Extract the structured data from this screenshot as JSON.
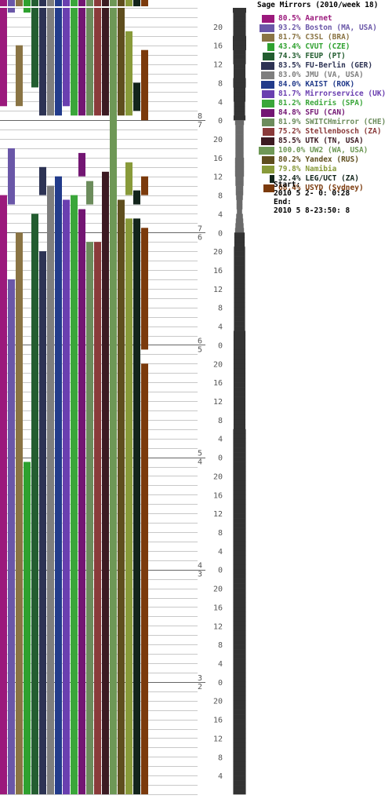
{
  "title": "Sage Mirrors (2010/week 18)",
  "period": {
    "start_label": "Start:",
    "start_value": "2010 5 2- 0: 0:28",
    "end_label": "End:",
    "end_value": "2010 5 8-23:50: 8"
  },
  "chart_data": {
    "type": "bar",
    "title": "Sage Mirrors (2010/week 18)",
    "time_axis": {
      "range_hours": [
        0,
        168
      ],
      "direction": "top=latest",
      "day_labels": [
        "8",
        "7",
        "6",
        "5",
        "4",
        "3",
        "2"
      ],
      "hour_tick_labels": [
        "20",
        "16",
        "12",
        "8",
        "4",
        "0"
      ],
      "hour_tick_step": 4
    },
    "grid": true,
    "legend_position": "top-right",
    "series": [
      {
        "name": "Aarnet",
        "pct": "80.5%",
        "color": "#9b197c",
        "up": [
          [
            0,
            21
          ],
          [
            40,
            168
          ]
        ]
      },
      {
        "name": "Boston (MA, USA)",
        "pct": "93.2%",
        "color": "#6a57a8",
        "up": [
          [
            0,
            1
          ],
          [
            30,
            42
          ],
          [
            58,
            168
          ]
        ]
      },
      {
        "name": "C3SL (BRA)",
        "pct": "81.7%",
        "color": "#8a7444",
        "up": [
          [
            8,
            21
          ],
          [
            48,
            168
          ]
        ]
      },
      {
        "name": "CVUT (CZE)",
        "pct": "43.4%",
        "color": "#2ea12f",
        "up": [
          [
            0,
            1
          ],
          [
            97,
            168
          ]
        ]
      },
      {
        "name": "FEUP (PT)",
        "pct": "74.3%",
        "color": "#235d30",
        "up": [
          [
            0,
            17
          ],
          [
            44,
            168
          ]
        ]
      },
      {
        "name": "FU-Berlin (GER)",
        "pct": "83.5%",
        "color": "#2d3354",
        "up": [
          [
            0,
            23
          ],
          [
            34,
            40
          ],
          [
            52,
            168
          ]
        ]
      },
      {
        "name": "JMU (VA, USA)",
        "pct": "83.0%",
        "color": "#7e7e7e",
        "up": [
          [
            0,
            23
          ],
          [
            38,
            168
          ]
        ]
      },
      {
        "name": "KAIST (ROK)",
        "pct": "84.0%",
        "color": "#223b8b",
        "up": [
          [
            0,
            23
          ],
          [
            36,
            168
          ]
        ]
      },
      {
        "name": "Mirrorservice (UK)",
        "pct": "81.7%",
        "color": "#6a3fb0",
        "up": [
          [
            0,
            21
          ],
          [
            41,
            168
          ]
        ]
      },
      {
        "name": "Rediris (SPA)",
        "pct": "81.2%",
        "color": "#3aa63a",
        "up": [
          [
            0,
            23
          ],
          [
            40,
            168
          ]
        ]
      },
      {
        "name": "SFU (CAN)",
        "pct": "84.8%",
        "color": "#731673",
        "up": [
          [
            0,
            23
          ],
          [
            31,
            36
          ],
          [
            43,
            168
          ]
        ]
      },
      {
        "name": "SWITCHmirror (CHE)",
        "pct": "81.9%",
        "color": "#6c8c5c",
        "up": [
          [
            0,
            23
          ],
          [
            37,
            42
          ],
          [
            50,
            168
          ]
        ]
      },
      {
        "name": "Stellenbosch (ZA)",
        "pct": "75.2%",
        "color": "#8a3a3a",
        "up": [
          [
            0,
            23
          ],
          [
            50,
            168
          ]
        ]
      },
      {
        "name": "UTK (TN, USA)",
        "pct": "85.5%",
        "color": "#3c1a22",
        "up": [
          [
            0,
            23
          ],
          [
            35,
            168
          ]
        ]
      },
      {
        "name": "UW2 (WA, USA)",
        "pct": "100.0%",
        "color": "#6e9856",
        "up": [
          [
            0,
            168
          ]
        ]
      },
      {
        "name": "Yandex (RUS)",
        "pct": "80.2%",
        "color": "#5f4e1e",
        "up": [
          [
            0,
            23
          ],
          [
            41,
            168
          ]
        ]
      },
      {
        "name": "Namibia",
        "pct": "79.8%",
        "color": "#889a3a",
        "up": [
          [
            5,
            23
          ],
          [
            33,
            40
          ],
          [
            45,
            168
          ]
        ]
      },
      {
        "name": "LEG/UCT (ZA)",
        "pct": "32.4%",
        "color": "#12241b",
        "up": [
          [
            16,
            22
          ],
          [
            39,
            42
          ],
          [
            45,
            168
          ]
        ]
      },
      {
        "name": "USYD (Sydney)",
        "pct": "68.4%",
        "color": "#7b3a0c",
        "up": [
          [
            9,
            24
          ],
          [
            36,
            40
          ],
          [
            47,
            73
          ],
          [
            76,
            168
          ]
        ]
      }
    ],
    "total_bar": {
      "color": "#333333",
      "values": [
        18,
        17,
        17,
        17,
        17,
        17,
        18,
        18,
        18,
        17,
        17,
        17,
        16,
        16,
        16,
        17,
        17,
        16,
        16,
        16,
        15,
        15,
        15,
        16,
        12,
        11,
        11,
        11,
        11,
        11,
        11,
        11,
        12,
        12,
        12,
        12,
        11,
        11,
        10,
        10,
        9,
        8,
        8,
        7,
        9,
        10,
        11,
        12,
        14,
        14,
        14,
        15,
        15,
        15,
        15,
        15,
        15,
        15,
        15,
        15,
        15,
        15,
        15,
        15,
        15,
        15,
        15,
        15,
        15,
        16,
        16,
        16,
        16,
        16,
        16,
        16,
        16,
        16,
        16,
        16,
        16,
        16,
        16,
        16,
        16,
        16,
        16,
        16,
        16,
        16,
        17,
        17,
        17,
        17,
        17,
        17,
        17,
        17,
        17,
        17,
        17,
        17,
        17,
        17,
        17,
        17,
        17,
        17,
        17,
        17,
        17,
        17,
        17,
        17,
        17,
        17,
        17,
        17,
        17,
        17,
        17,
        17,
        17,
        17,
        17,
        17,
        17,
        17,
        17,
        17,
        17,
        17,
        17,
        17,
        17,
        17,
        17,
        17,
        17,
        17,
        17,
        17,
        17,
        17,
        17,
        17,
        17,
        17,
        17,
        17,
        17,
        17,
        17,
        17,
        17,
        17,
        17,
        17,
        17,
        17,
        17,
        17,
        17,
        17,
        17,
        17,
        17,
        17
      ],
      "max": 19
    }
  }
}
